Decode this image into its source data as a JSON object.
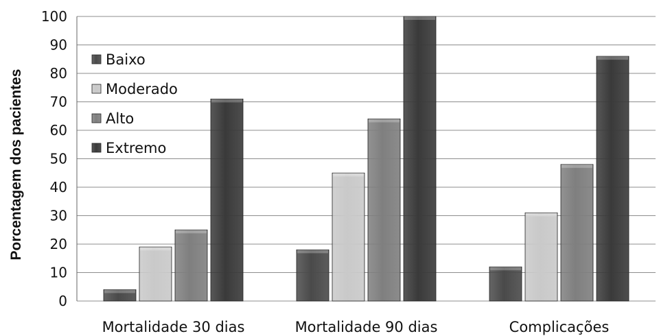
{
  "chart_data": {
    "type": "bar",
    "title": "",
    "xlabel": "",
    "ylabel": "Porcentagem dos pacientes",
    "ylim": [
      0,
      100
    ],
    "yticks": [
      0,
      10,
      20,
      30,
      40,
      50,
      60,
      70,
      80,
      90,
      100
    ],
    "grid": true,
    "legend_position": "top-left",
    "categories": [
      "Mortalidade 30 dias",
      "Mortalidade 90 dias",
      "Complicações"
    ],
    "series": [
      {
        "name": "Baixo",
        "values": [
          4,
          18,
          12
        ],
        "color": "#4a4a4a"
      },
      {
        "name": "Moderado",
        "values": [
          19,
          45,
          31
        ],
        "color": "#c9c9c9"
      },
      {
        "name": "Alto",
        "values": [
          25,
          64,
          48
        ],
        "color": "#7f7f7f"
      },
      {
        "name": "Extremo",
        "values": [
          71,
          100,
          86
        ],
        "color": "#3a3a3a"
      }
    ]
  }
}
